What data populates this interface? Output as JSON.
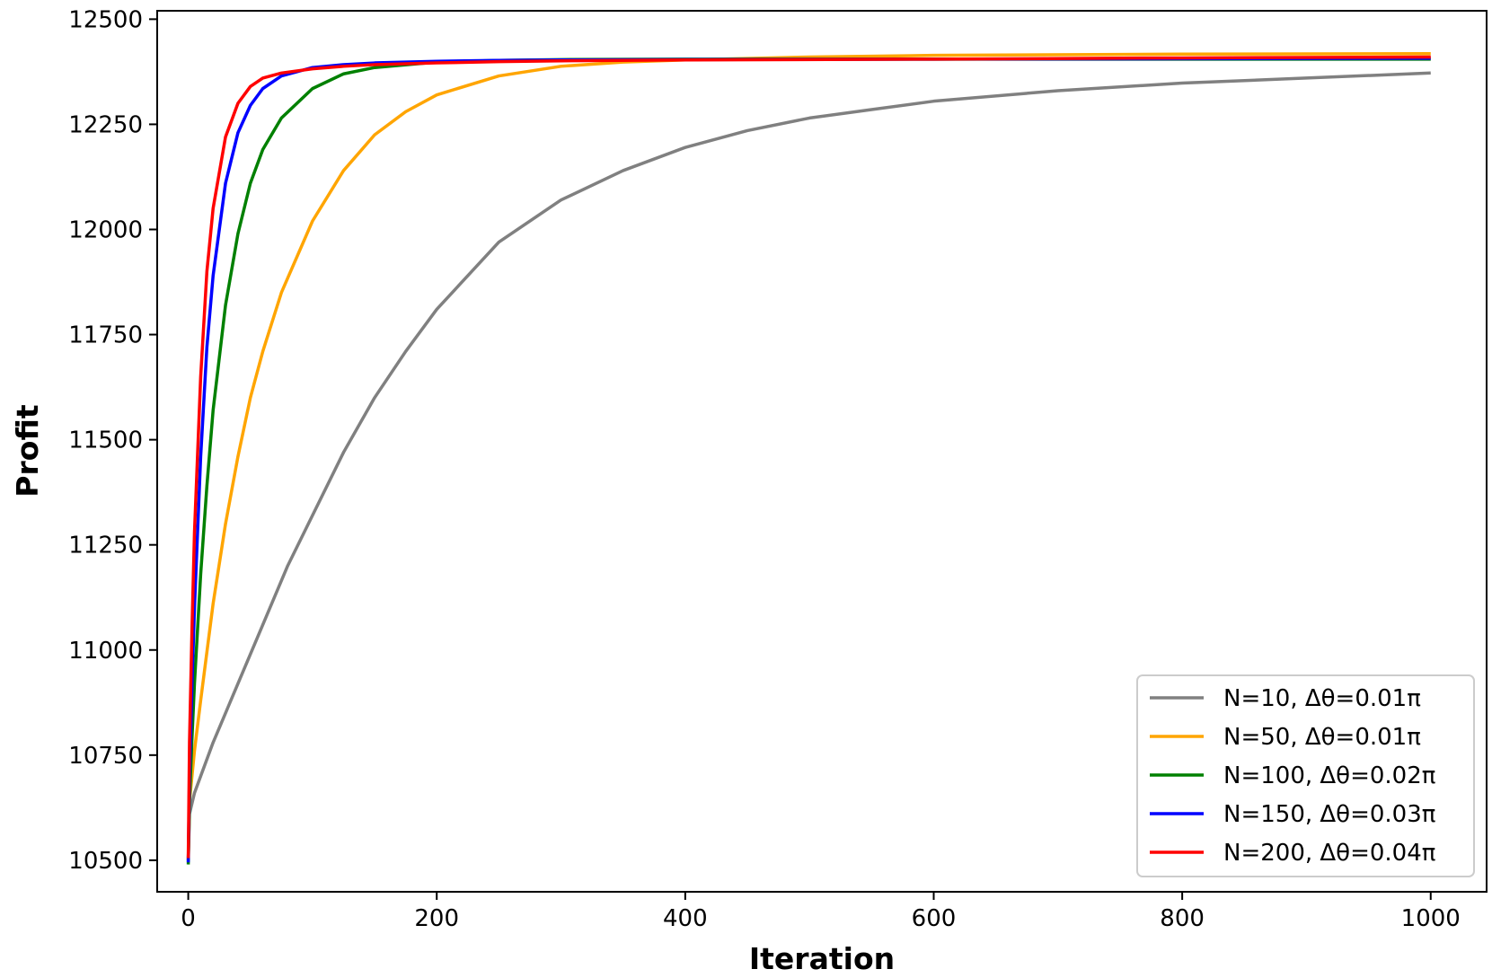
{
  "chart_data": {
    "type": "line",
    "title": "",
    "xlabel": "Iteration",
    "ylabel": "Profit",
    "xlim": [
      -25,
      1045
    ],
    "ylim": [
      10425,
      12520
    ],
    "xticks": [
      0,
      200,
      400,
      600,
      800,
      1000
    ],
    "yticks": [
      10500,
      10750,
      11000,
      11250,
      11500,
      11750,
      12000,
      12250,
      12500
    ],
    "grid": false,
    "legend_position": "bottom-right",
    "series": [
      {
        "name": "N=10, Δθ=0.01π",
        "color": "#808080",
        "x": [
          0,
          1,
          5,
          10,
          20,
          40,
          60,
          80,
          100,
          125,
          150,
          175,
          200,
          250,
          300,
          350,
          400,
          450,
          500,
          550,
          600,
          700,
          800,
          900,
          1000
        ],
        "y": [
          10500,
          10610,
          10660,
          10700,
          10780,
          10920,
          11060,
          11200,
          11320,
          11470,
          11600,
          11710,
          11810,
          11970,
          12070,
          12140,
          12195,
          12235,
          12265,
          12285,
          12305,
          12330,
          12348,
          12360,
          12372
        ]
      },
      {
        "name": "N=50, Δθ=0.01π",
        "color": "#ffa500",
        "x": [
          0,
          1,
          5,
          10,
          20,
          30,
          40,
          50,
          60,
          75,
          100,
          125,
          150,
          175,
          200,
          250,
          300,
          350,
          400,
          500,
          600,
          800,
          1000
        ],
        "y": [
          10500,
          10640,
          10760,
          10880,
          11110,
          11300,
          11460,
          11600,
          11710,
          11850,
          12020,
          12140,
          12225,
          12280,
          12320,
          12365,
          12388,
          12398,
          12403,
          12410,
          12414,
          12417,
          12418
        ]
      },
      {
        "name": "N=100, Δθ=0.02π",
        "color": "#008000",
        "x": [
          0,
          1,
          3,
          5,
          10,
          15,
          20,
          30,
          40,
          50,
          60,
          75,
          100,
          125,
          150,
          200,
          250,
          300,
          400,
          600,
          800,
          1000
        ],
        "y": [
          10490,
          10640,
          10790,
          10920,
          11180,
          11390,
          11570,
          11820,
          11990,
          12110,
          12190,
          12265,
          12335,
          12370,
          12385,
          12398,
          12402,
          12404,
          12405,
          12405,
          12405,
          12405
        ]
      },
      {
        "name": "N=150, Δθ=0.03π",
        "color": "#0000ff",
        "x": [
          0,
          1,
          3,
          5,
          10,
          15,
          20,
          30,
          40,
          50,
          60,
          75,
          100,
          125,
          150,
          200,
          250,
          300,
          400,
          600,
          800,
          1000
        ],
        "y": [
          10495,
          10700,
          10920,
          11100,
          11460,
          11720,
          11890,
          12110,
          12230,
          12295,
          12335,
          12365,
          12385,
          12392,
          12396,
          12400,
          12402,
          12403,
          12404,
          12405,
          12406,
          12407
        ]
      },
      {
        "name": "N=200, Δθ=0.04π",
        "color": "#ff0000",
        "x": [
          0,
          1,
          3,
          5,
          10,
          15,
          20,
          30,
          40,
          50,
          60,
          75,
          100,
          125,
          150,
          200,
          250,
          300,
          400,
          600,
          800,
          1000
        ],
        "y": [
          10505,
          10780,
          11050,
          11280,
          11650,
          11900,
          12050,
          12220,
          12300,
          12340,
          12360,
          12372,
          12382,
          12388,
          12392,
          12396,
          12399,
          12401,
          12403,
          12405,
          12408,
          12410
        ]
      }
    ]
  }
}
